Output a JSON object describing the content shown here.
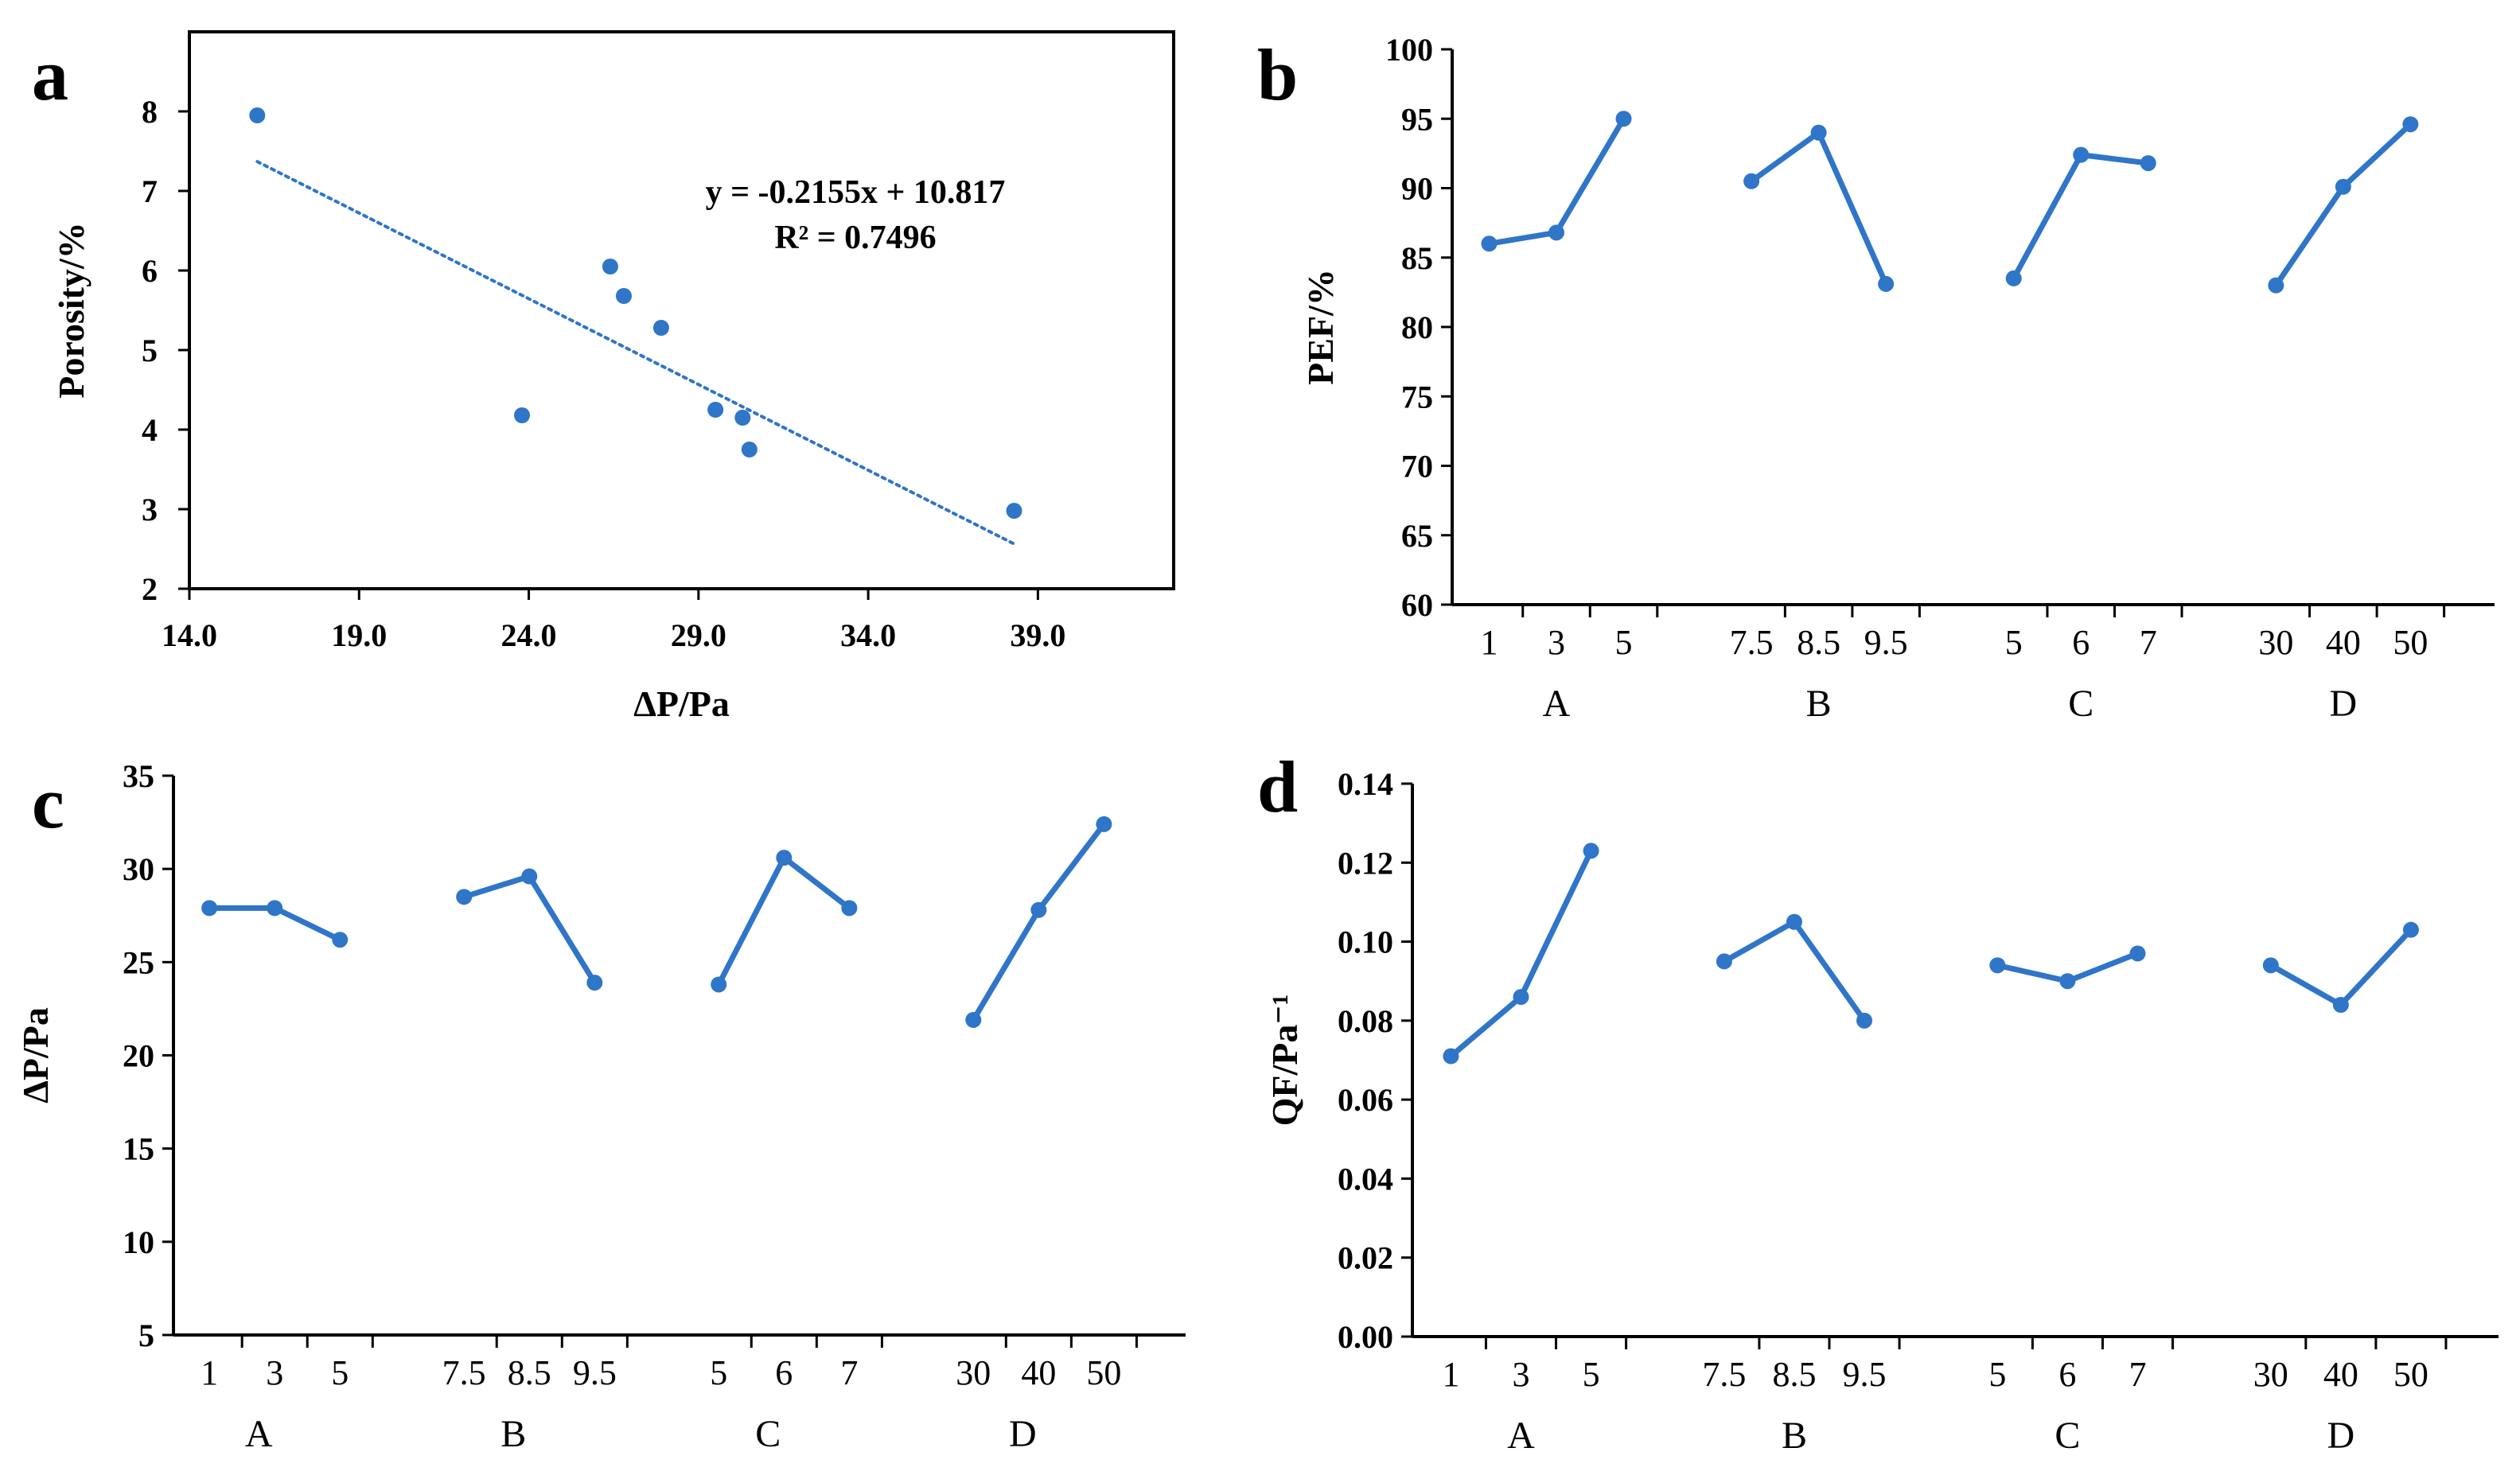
{
  "colors": {
    "series": "#2f75c8",
    "axis": "#000000",
    "text": "#000000"
  },
  "chart_data": [
    {
      "id": "a",
      "panel_label": "a",
      "type": "scatter",
      "xlabel": "ΔP/Pa",
      "ylabel": "Porosity/%",
      "xlim": [
        14.0,
        43.0
      ],
      "ylim": [
        2,
        9
      ],
      "xticks": [
        14.0,
        19.0,
        24.0,
        29.0,
        34.0,
        39.0
      ],
      "xtick_labels": [
        "14.0",
        "19.0",
        "24.0",
        "29.0",
        "34.0",
        "39.0"
      ],
      "yticks": [
        2,
        3,
        4,
        5,
        6,
        7,
        8
      ],
      "ytick_labels": [
        "2",
        "3",
        "4",
        "5",
        "6",
        "7",
        "8"
      ],
      "points": [
        {
          "x": 16.0,
          "y": 7.95
        },
        {
          "x": 23.8,
          "y": 4.18
        },
        {
          "x": 26.4,
          "y": 6.05
        },
        {
          "x": 26.8,
          "y": 5.68
        },
        {
          "x": 27.9,
          "y": 5.28
        },
        {
          "x": 29.5,
          "y": 4.25
        },
        {
          "x": 30.3,
          "y": 4.15
        },
        {
          "x": 30.5,
          "y": 3.75
        },
        {
          "x": 38.3,
          "y": 2.98
        }
      ],
      "trendline": {
        "slope": -0.2155,
        "intercept": 10.817,
        "x_range": [
          16.0,
          38.3
        ]
      },
      "annotation": {
        "equation": "y = -0.2155x + 10.817",
        "r2": "R² = 0.7496"
      }
    },
    {
      "id": "b",
      "panel_label": "b",
      "type": "line",
      "ylabel": "PEF/%",
      "ylim": [
        60,
        100
      ],
      "yticks": [
        60,
        65,
        70,
        75,
        80,
        85,
        90,
        95,
        100
      ],
      "ytick_labels": [
        "60",
        "65",
        "70",
        "75",
        "80",
        "85",
        "90",
        "95",
        "100"
      ],
      "groups": [
        {
          "name": "A",
          "levels": [
            "1",
            "3",
            "5"
          ],
          "values": [
            86.0,
            86.8,
            95.0
          ]
        },
        {
          "name": "B",
          "levels": [
            "7.5",
            "8.5",
            "9.5"
          ],
          "values": [
            90.5,
            94.0,
            83.1
          ]
        },
        {
          "name": "C",
          "levels": [
            "5",
            "6",
            "7"
          ],
          "values": [
            83.5,
            92.4,
            91.8
          ]
        },
        {
          "name": "D",
          "levels": [
            "30",
            "40",
            "50"
          ],
          "values": [
            83.0,
            90.1,
            94.6
          ]
        }
      ]
    },
    {
      "id": "c",
      "panel_label": "c",
      "type": "line",
      "ylabel": "ΔP/Pa",
      "ylim": [
        5,
        35
      ],
      "yticks": [
        5,
        10,
        15,
        20,
        25,
        30,
        35
      ],
      "ytick_labels": [
        "5",
        "10",
        "15",
        "20",
        "25",
        "30",
        "35"
      ],
      "groups": [
        {
          "name": "A",
          "levels": [
            "1",
            "3",
            "5"
          ],
          "values": [
            27.9,
            27.9,
            26.2
          ]
        },
        {
          "name": "B",
          "levels": [
            "7.5",
            "8.5",
            "9.5"
          ],
          "values": [
            28.5,
            29.6,
            23.9
          ]
        },
        {
          "name": "C",
          "levels": [
            "5",
            "6",
            "7"
          ],
          "values": [
            23.8,
            30.6,
            27.9
          ]
        },
        {
          "name": "D",
          "levels": [
            "30",
            "40",
            "50"
          ],
          "values": [
            21.9,
            27.8,
            32.4
          ]
        }
      ]
    },
    {
      "id": "d",
      "panel_label": "d",
      "type": "line",
      "ylabel": "QF/Pa⁻¹",
      "ylim": [
        0.0,
        0.14
      ],
      "yticks": [
        0.0,
        0.02,
        0.04,
        0.06,
        0.08,
        0.1,
        0.12,
        0.14
      ],
      "ytick_labels": [
        "0.00",
        "0.02",
        "0.04",
        "0.06",
        "0.08",
        "0.10",
        "0.12",
        "0.14"
      ],
      "groups": [
        {
          "name": "A",
          "levels": [
            "1",
            "3",
            "5"
          ],
          "values": [
            0.071,
            0.086,
            0.123
          ]
        },
        {
          "name": "B",
          "levels": [
            "7.5",
            "8.5",
            "9.5"
          ],
          "values": [
            0.095,
            0.105,
            0.08
          ]
        },
        {
          "name": "C",
          "levels": [
            "5",
            "6",
            "7"
          ],
          "values": [
            0.094,
            0.09,
            0.097
          ]
        },
        {
          "name": "D",
          "levels": [
            "30",
            "40",
            "50"
          ],
          "values": [
            0.094,
            0.084,
            0.103
          ]
        }
      ]
    }
  ]
}
